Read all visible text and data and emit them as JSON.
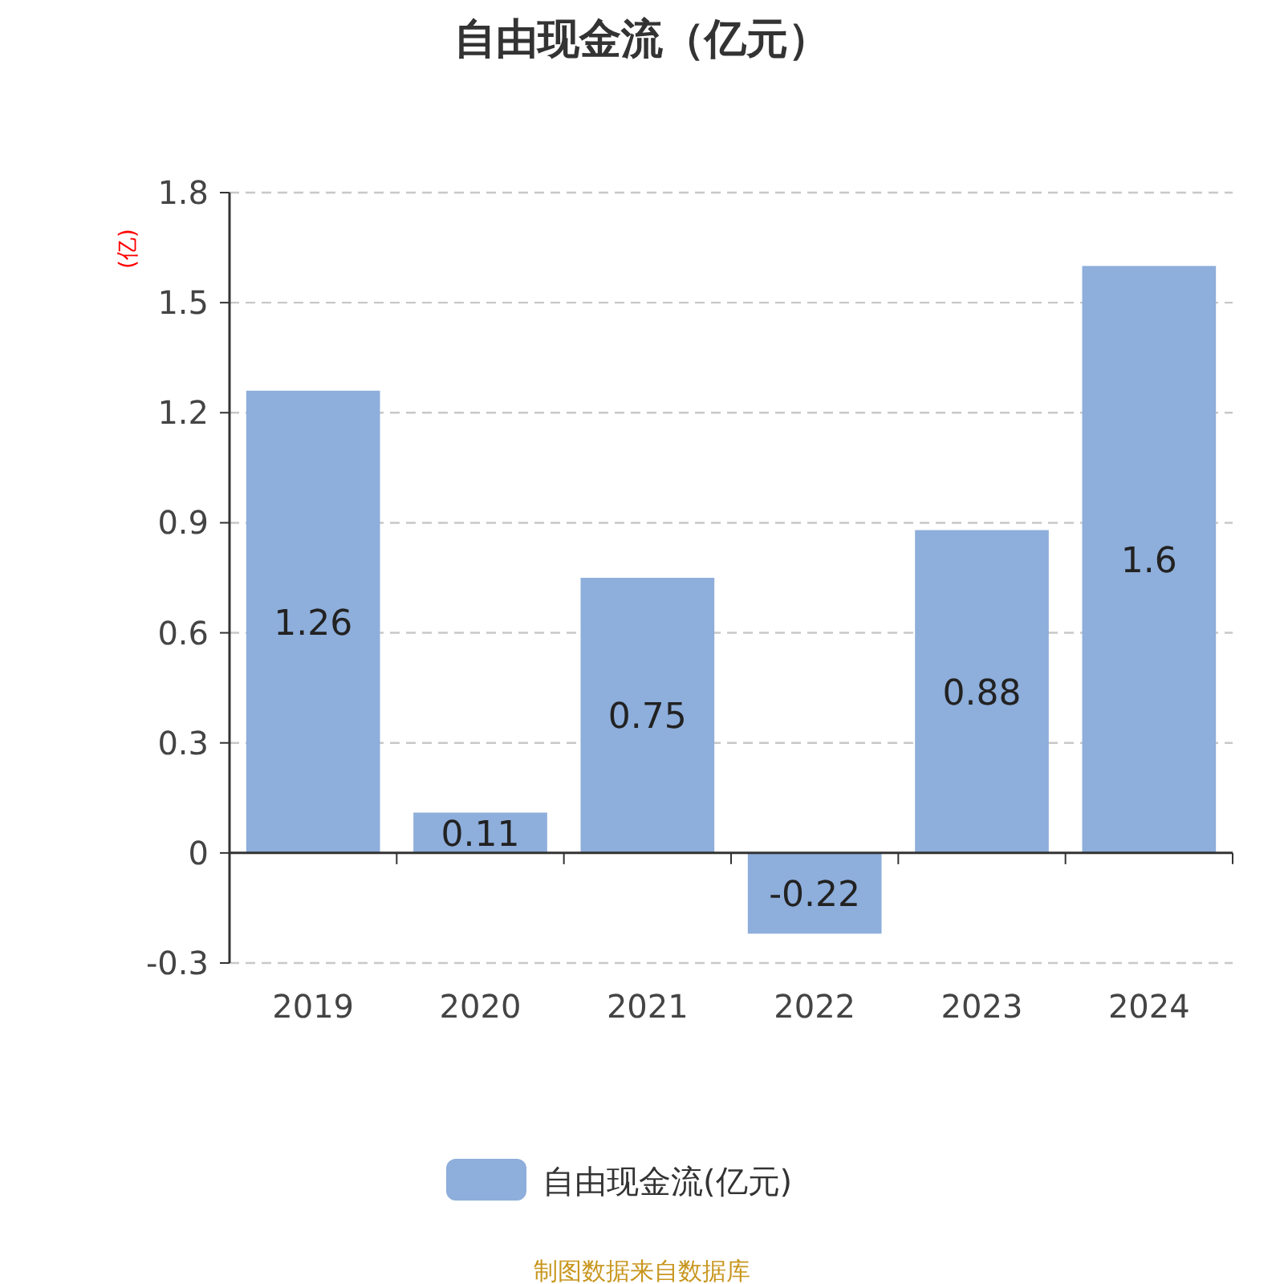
{
  "chart_data": {
    "type": "bar",
    "title": "自由现金流（亿元）",
    "ylabel": "(亿)",
    "categories": [
      "2019",
      "2020",
      "2021",
      "2022",
      "2023",
      "2024"
    ],
    "series": [
      {
        "name": "自由现金流(亿元)",
        "color": "#8eaedb",
        "values": [
          1.26,
          0.11,
          0.75,
          -0.22,
          0.88,
          1.6
        ]
      }
    ],
    "ylim": [
      -0.3,
      1.8
    ],
    "yticks": [
      -0.3,
      0,
      0.3,
      0.6,
      0.9,
      1.2,
      1.5,
      1.8
    ],
    "grid": "y",
    "legend": "bottom",
    "data_labels": true,
    "annotations": [
      "制图数据来自数据库"
    ]
  }
}
